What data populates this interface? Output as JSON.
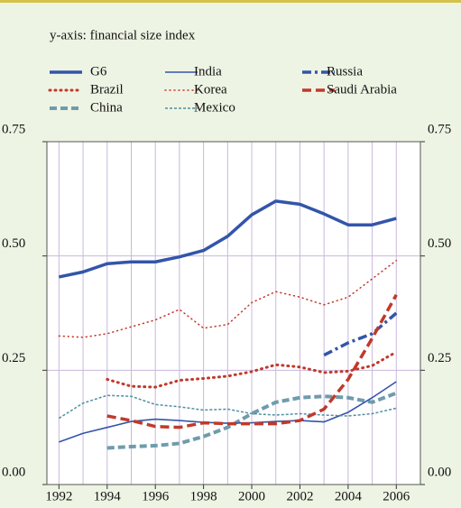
{
  "chart_data": {
    "type": "line",
    "subtitle": "y-axis: financial size index",
    "x": [
      1992,
      1993,
      1994,
      1995,
      1996,
      1997,
      1998,
      1999,
      2000,
      2001,
      2002,
      2003,
      2004,
      2005,
      2006
    ],
    "xlim": [
      1991.5,
      2007
    ],
    "xticks": [
      1992,
      1994,
      1996,
      1998,
      2000,
      2002,
      2004,
      2006
    ],
    "ylim": [
      0,
      0.75
    ],
    "yticks": [
      {
        "value": 0,
        "label": "0.00"
      },
      0.25,
      {
        "value": 0.5,
        "label": "0.50"
      },
      0.75
    ],
    "grid": true,
    "series": [
      {
        "name": "G6",
        "color": "#3355aa",
        "width": 3.5,
        "dash": "none",
        "values": [
          0.454,
          0.465,
          0.483,
          0.487,
          0.487,
          0.498,
          0.512,
          0.543,
          0.59,
          0.62,
          0.613,
          0.592,
          0.568,
          0.568,
          0.582
        ]
      },
      {
        "name": "Brazil",
        "color": "#c0392b",
        "width": 3,
        "dash": "1 5",
        "values": [
          null,
          null,
          0.23,
          0.215,
          0.213,
          0.228,
          0.232,
          0.237,
          0.247,
          0.262,
          0.257,
          0.245,
          0.248,
          0.26,
          0.29
        ]
      },
      {
        "name": "China",
        "color": "#6e9cac",
        "width": 4,
        "dash": "8 4",
        "values": [
          null,
          null,
          0.08,
          0.083,
          0.085,
          0.09,
          0.105,
          0.125,
          0.155,
          0.18,
          0.19,
          0.193,
          0.19,
          0.18,
          0.2
        ]
      },
      {
        "name": "India",
        "color": "#3355aa",
        "width": 1.6,
        "dash": "none",
        "values": [
          0.093,
          0.112,
          0.125,
          0.138,
          0.143,
          0.14,
          0.136,
          0.134,
          0.135,
          0.138,
          0.14,
          0.137,
          0.158,
          0.19,
          0.225
        ]
      },
      {
        "name": "Korea",
        "color": "#c0392b",
        "width": 1.5,
        "dash": "1 4",
        "values": [
          0.325,
          0.322,
          0.33,
          0.345,
          0.36,
          0.383,
          0.342,
          0.35,
          0.398,
          0.422,
          0.41,
          0.393,
          0.41,
          0.45,
          0.49
        ]
      },
      {
        "name": "Mexico",
        "color": "#4f8fa0",
        "width": 1.5,
        "dash": "3 2",
        "values": [
          0.145,
          0.178,
          0.195,
          0.193,
          0.175,
          0.17,
          0.163,
          0.165,
          0.155,
          0.152,
          0.155,
          0.152,
          0.15,
          0.155,
          0.167
        ]
      },
      {
        "name": "Russia",
        "color": "#3355aa",
        "width": 3.5,
        "dash": "10 4 3 4",
        "values": [
          null,
          null,
          null,
          null,
          null,
          null,
          null,
          null,
          null,
          null,
          null,
          0.283,
          0.31,
          0.33,
          0.375
        ]
      },
      {
        "name": "Saudi Arabia",
        "color": "#c0392b",
        "width": 3.5,
        "dash": "10 5",
        "values": [
          null,
          null,
          0.15,
          0.14,
          0.127,
          0.125,
          0.135,
          0.133,
          0.133,
          0.133,
          0.14,
          0.165,
          0.23,
          0.32,
          0.415
        ]
      }
    ]
  }
}
